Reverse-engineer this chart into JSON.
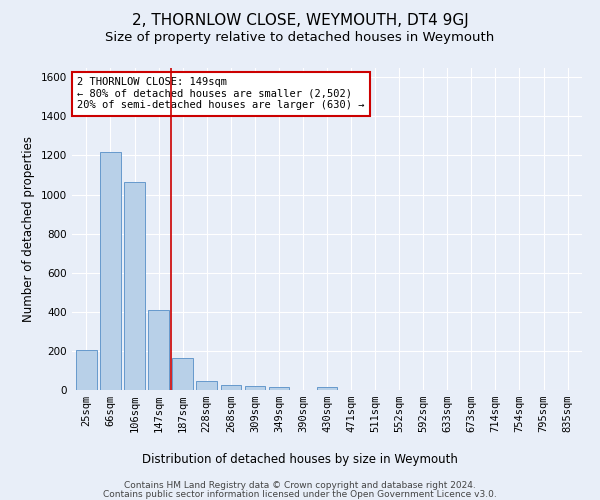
{
  "title": "2, THORNLOW CLOSE, WEYMOUTH, DT4 9GJ",
  "subtitle": "Size of property relative to detached houses in Weymouth",
  "xlabel": "Distribution of detached houses by size in Weymouth",
  "ylabel": "Number of detached properties",
  "categories": [
    "25sqm",
    "66sqm",
    "106sqm",
    "147sqm",
    "187sqm",
    "228sqm",
    "268sqm",
    "309sqm",
    "349sqm",
    "390sqm",
    "430sqm",
    "471sqm",
    "511sqm",
    "552sqm",
    "592sqm",
    "633sqm",
    "673sqm",
    "714sqm",
    "754sqm",
    "795sqm",
    "835sqm"
  ],
  "values": [
    205,
    1220,
    1065,
    410,
    165,
    48,
    27,
    20,
    15,
    0,
    15,
    0,
    0,
    0,
    0,
    0,
    0,
    0,
    0,
    0,
    0
  ],
  "bar_color": "#b8d0e8",
  "bar_edge_color": "#6699cc",
  "red_line_x": 3.5,
  "annotation_text": "2 THORNLOW CLOSE: 149sqm\n← 80% of detached houses are smaller (2,502)\n20% of semi-detached houses are larger (630) →",
  "annotation_box_color": "#ffffff",
  "annotation_box_edge_color": "#cc0000",
  "ylim": [
    0,
    1650
  ],
  "yticks": [
    0,
    200,
    400,
    600,
    800,
    1000,
    1200,
    1400,
    1600
  ],
  "footer_line1": "Contains HM Land Registry data © Crown copyright and database right 2024.",
  "footer_line2": "Contains public sector information licensed under the Open Government Licence v3.0.",
  "bg_color": "#e8eef8",
  "plot_bg_color": "#e8eef8",
  "grid_color": "#ffffff",
  "title_fontsize": 11,
  "subtitle_fontsize": 9.5,
  "axis_label_fontsize": 8.5,
  "tick_fontsize": 7.5,
  "footer_fontsize": 6.5
}
